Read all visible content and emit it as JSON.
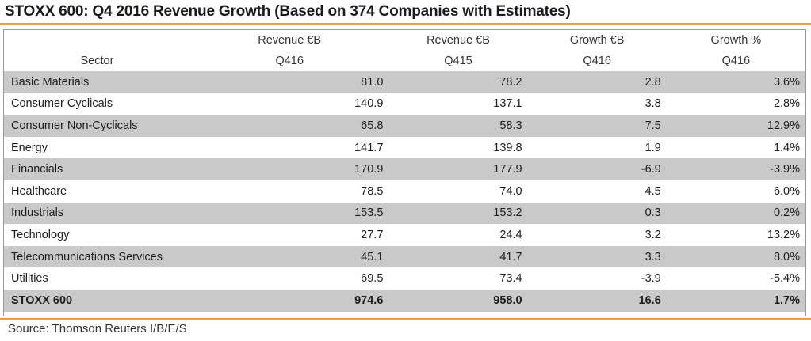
{
  "title": "STOXX 600: Q4 2016 Revenue Growth (Based on 374 Companies with Estimates)",
  "header": {
    "row1": [
      "",
      "Revenue €B",
      "Revenue €B",
      "Growth €B",
      "Growth %"
    ],
    "row2": [
      "Sector",
      "Q416",
      "Q415",
      "Q416",
      "Q416"
    ]
  },
  "rows": [
    {
      "sector": "Basic Materials",
      "rev_q416": "81.0",
      "rev_q415": "78.2",
      "growth_eb": "2.8",
      "growth_pct": "3.6%"
    },
    {
      "sector": "Consumer Cyclicals",
      "rev_q416": "140.9",
      "rev_q415": "137.1",
      "growth_eb": "3.8",
      "growth_pct": "2.8%"
    },
    {
      "sector": "Consumer Non-Cyclicals",
      "rev_q416": "65.8",
      "rev_q415": "58.3",
      "growth_eb": "7.5",
      "growth_pct": "12.9%"
    },
    {
      "sector": "Energy",
      "rev_q416": "141.7",
      "rev_q415": "139.8",
      "growth_eb": "1.9",
      "growth_pct": "1.4%"
    },
    {
      "sector": "Financials",
      "rev_q416": "170.9",
      "rev_q415": "177.9",
      "growth_eb": "-6.9",
      "growth_pct": "-3.9%"
    },
    {
      "sector": "Healthcare",
      "rev_q416": "78.5",
      "rev_q415": "74.0",
      "growth_eb": "4.5",
      "growth_pct": "6.0%"
    },
    {
      "sector": "Industrials",
      "rev_q416": "153.5",
      "rev_q415": "153.2",
      "growth_eb": "0.3",
      "growth_pct": "0.2%"
    },
    {
      "sector": "Technology",
      "rev_q416": "27.7",
      "rev_q415": "24.4",
      "growth_eb": "3.2",
      "growth_pct": "13.2%"
    },
    {
      "sector": "Telecommunications Services",
      "rev_q416": "45.1",
      "rev_q415": "41.7",
      "growth_eb": "3.3",
      "growth_pct": "8.0%"
    },
    {
      "sector": "Utilities",
      "rev_q416": "69.5",
      "rev_q415": "73.4",
      "growth_eb": "-3.9",
      "growth_pct": "-5.4%"
    }
  ],
  "total": {
    "sector": "STOXX 600",
    "rev_q416": "974.6",
    "rev_q415": "958.0",
    "growth_eb": "16.6",
    "growth_pct": "1.7%"
  },
  "source": "Source: Thomson Reuters I/B/E/S",
  "colors": {
    "accent_rule": "#f0a030",
    "row_shade": "#c9c9c9"
  }
}
